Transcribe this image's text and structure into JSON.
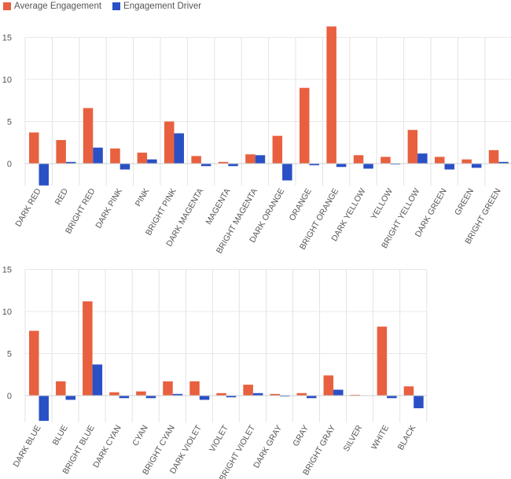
{
  "legend": {
    "items": [
      {
        "label": "Average Engagement",
        "color": "#e8603f"
      },
      {
        "label": "Engagement Driver",
        "color": "#2a50c6"
      }
    ]
  },
  "chart_data": [
    {
      "type": "bar",
      "title": "",
      "xlabel": "",
      "ylabel": "",
      "ylim": [
        -2.6,
        16.5
      ],
      "yticks": [
        0,
        5,
        10,
        15
      ],
      "categories": [
        "DARK RED",
        "RED",
        "BRIGHT RED",
        "DARK PINK",
        "PINK",
        "BRIGHT PINK",
        "DARK MAGENTA",
        "MAGENTA",
        "BRIGHT MAGENTA",
        "DARK ORANGE",
        "ORANGE",
        "BRIGHT ORANGE",
        "DARK YELLOW",
        "YELLOW",
        "BRIGHT YELLOW",
        "DARK GREEN",
        "GREEN",
        "BRIGHT GREEN"
      ],
      "series": [
        {
          "name": "Average Engagement",
          "values": [
            3.7,
            2.8,
            6.6,
            1.8,
            1.3,
            5.0,
            0.9,
            0.2,
            1.1,
            3.3,
            9.0,
            16.3,
            1.0,
            0.8,
            4.0,
            0.8,
            0.5,
            1.6
          ]
        },
        {
          "name": "Engagement Driver",
          "values": [
            -2.6,
            0.2,
            1.9,
            -0.7,
            0.5,
            3.6,
            -0.3,
            -0.3,
            1.0,
            -2.0,
            -0.2,
            -0.4,
            -0.6,
            -0.1,
            1.2,
            -0.7,
            -0.5,
            0.2
          ]
        }
      ]
    },
    {
      "type": "bar",
      "title": "",
      "xlabel": "",
      "ylabel": "",
      "ylim": [
        -3.0,
        15.0
      ],
      "yticks": [
        0,
        5,
        10,
        15
      ],
      "categories": [
        "DARK BLUE",
        "BLUE",
        "BRIGHT BLUE",
        "DARK CYAN",
        "CYAN",
        "BRIGHT CYAN",
        "DARK VIOLET",
        "VIOLET",
        "BRIGHT VIOLET",
        "DARK GRAY",
        "GRAY",
        "BRIGHT GRAY",
        "SILVER",
        "WHITE",
        "BLACK"
      ],
      "series": [
        {
          "name": "Average Engagement",
          "values": [
            7.7,
            1.7,
            11.2,
            0.4,
            0.5,
            1.7,
            1.7,
            0.3,
            1.3,
            0.2,
            0.3,
            2.4,
            0.1,
            8.2,
            1.1
          ]
        },
        {
          "name": "Engagement Driver",
          "values": [
            -3.0,
            -0.5,
            3.7,
            -0.3,
            -0.3,
            0.2,
            -0.5,
            -0.2,
            0.3,
            -0.1,
            -0.3,
            0.7,
            0.0,
            -0.3,
            -1.5
          ]
        }
      ]
    }
  ]
}
